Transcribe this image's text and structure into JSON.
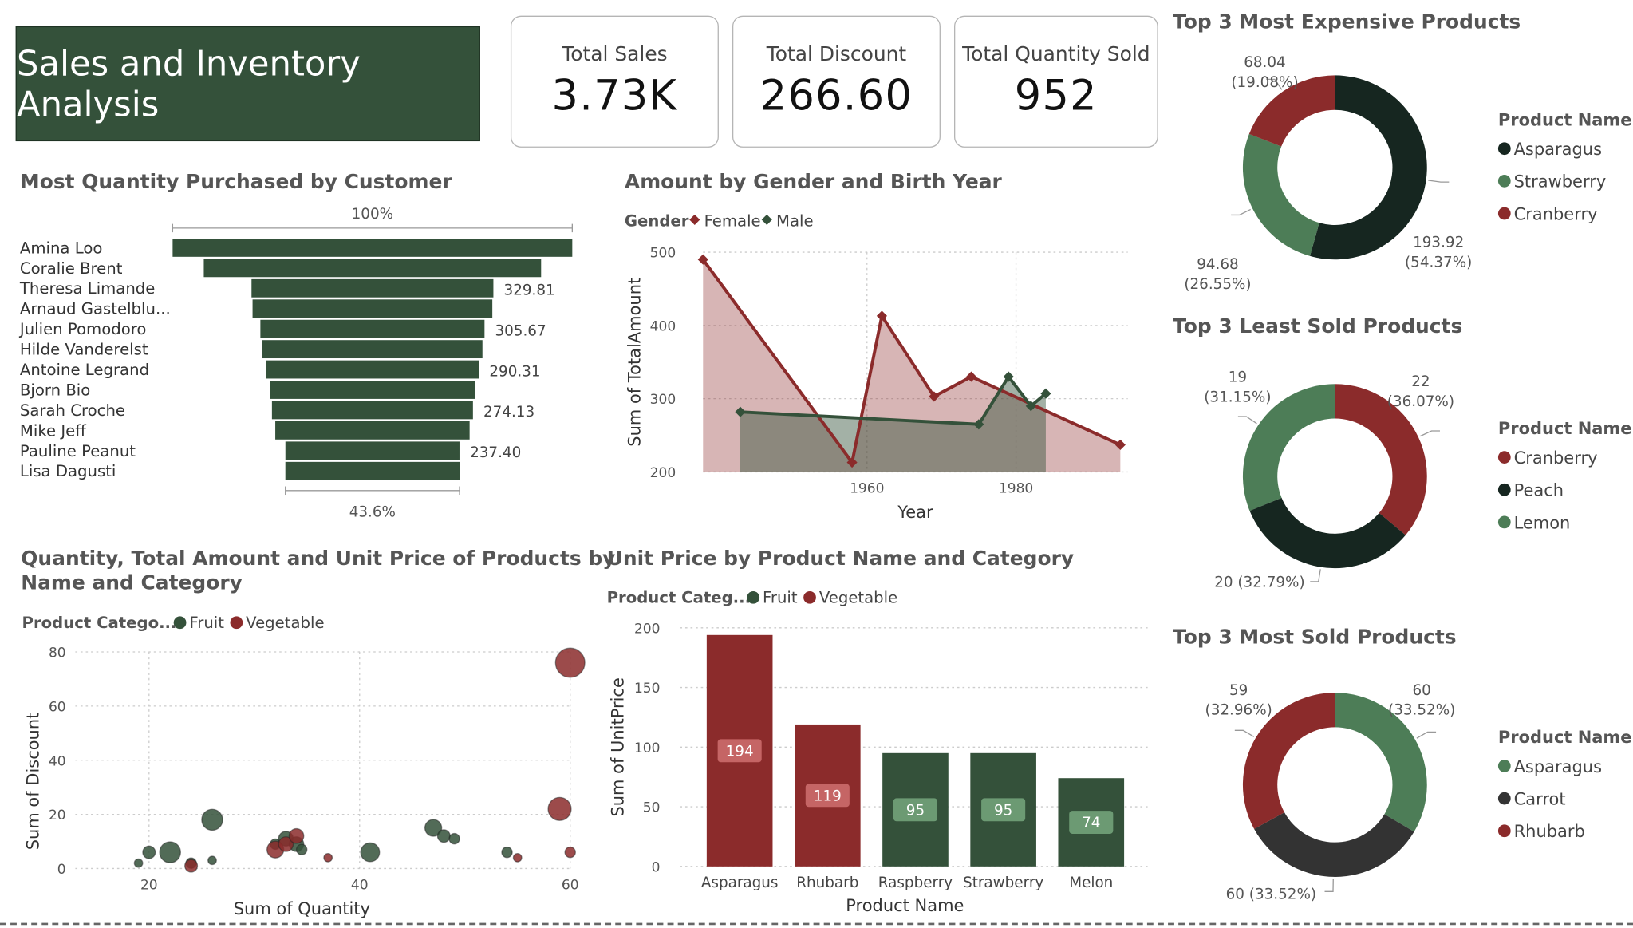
{
  "header": {
    "title": "Sales and Inventory Analysis"
  },
  "kpis": [
    {
      "label": "Total Sales",
      "value": "3.73K"
    },
    {
      "label": "Total Discount",
      "value": "266.60"
    },
    {
      "label": "Total Quantity Sold",
      "value": "952"
    }
  ],
  "colors": {
    "dark_green": "#34513a",
    "light_green": "#4d7d57",
    "red": "#8b2b2b",
    "black_green": "#162620",
    "charcoal": "#333333"
  },
  "chart_data": [
    {
      "id": "funnel",
      "type": "bar",
      "subtype": "funnel",
      "title": "Most Quantity Purchased by Customer",
      "top_label": "100%",
      "bottom_label": "43.6%",
      "categories": [
        "Amina Loo",
        "Coralie Brent",
        "Theresa Limande",
        "Arnaud Gastelblu...",
        "Julien Pomodoro",
        "Hilde Vanderelst",
        "Antoine Legrand",
        "Bjorn Bio",
        "Sarah Croche",
        "Mike Jeff",
        "Pauline Peanut",
        "Lisa Dagusti"
      ],
      "values": [
        545,
        460,
        329.81,
        327,
        305.67,
        300,
        290.31,
        280,
        274.13,
        265,
        237.4,
        237.5
      ],
      "data_labels": [
        "",
        "",
        "329.81",
        "",
        "305.67",
        "",
        "290.31",
        "",
        "274.13",
        "",
        "237.40",
        ""
      ]
    },
    {
      "id": "gender_line",
      "type": "area",
      "title": "Amount by Gender and Birth Year",
      "legend_title": "Gender",
      "xlabel": "Year",
      "ylabel": "Sum of TotalAmount",
      "xlim": [
        1938,
        1995
      ],
      "ylim": [
        200,
        500
      ],
      "xticks": [
        1960,
        1980
      ],
      "yticks": [
        200,
        300,
        400,
        500
      ],
      "series": [
        {
          "name": "Female",
          "color": "#8b2b2b",
          "x": [
            1938,
            1958,
            1962,
            1969,
            1974,
            1994
          ],
          "y": [
            490,
            213,
            413,
            303,
            330,
            237
          ]
        },
        {
          "name": "Male",
          "color": "#34513a",
          "x": [
            1943,
            1975,
            1979,
            1982,
            1984
          ],
          "y": [
            282,
            265,
            330,
            290,
            307
          ]
        }
      ]
    },
    {
      "id": "scatter",
      "type": "scatter",
      "title_line1": "Quantity, Total Amount and Unit Price of Products by",
      "title_line2": "Name and Category",
      "legend_title": "Product Catego...",
      "xlabel": "Sum of Quantity",
      "ylabel": "Sum of Discount",
      "xlim": [
        13,
        60
      ],
      "ylim": [
        0,
        80
      ],
      "xticks": [
        20,
        40,
        60
      ],
      "yticks": [
        0,
        20,
        40,
        60,
        80
      ],
      "series": [
        {
          "name": "Fruit",
          "color": "#34513a",
          "points": [
            {
              "x": 19,
              "y": 2,
              "r": 4
            },
            {
              "x": 20,
              "y": 6,
              "r": 6
            },
            {
              "x": 22,
              "y": 6,
              "r": 10
            },
            {
              "x": 24,
              "y": 2,
              "r": 5
            },
            {
              "x": 26,
              "y": 3,
              "r": 4
            },
            {
              "x": 26,
              "y": 18,
              "r": 10
            },
            {
              "x": 32,
              "y": 9,
              "r": 5
            },
            {
              "x": 33,
              "y": 11,
              "r": 7
            },
            {
              "x": 34,
              "y": 9,
              "r": 7
            },
            {
              "x": 34.5,
              "y": 7,
              "r": 5
            },
            {
              "x": 41,
              "y": 6,
              "r": 9
            },
            {
              "x": 47,
              "y": 15,
              "r": 8
            },
            {
              "x": 48,
              "y": 12,
              "r": 6
            },
            {
              "x": 49,
              "y": 11,
              "r": 5
            },
            {
              "x": 54,
              "y": 6,
              "r": 5
            }
          ]
        },
        {
          "name": "Vegetable",
          "color": "#8b2b2b",
          "points": [
            {
              "x": 24,
              "y": 1,
              "r": 6
            },
            {
              "x": 32,
              "y": 7,
              "r": 8
            },
            {
              "x": 33,
              "y": 9,
              "r": 7
            },
            {
              "x": 34,
              "y": 12,
              "r": 7
            },
            {
              "x": 37,
              "y": 4,
              "r": 4
            },
            {
              "x": 55,
              "y": 4,
              "r": 4
            },
            {
              "x": 59,
              "y": 22,
              "r": 11
            },
            {
              "x": 60,
              "y": 6,
              "r": 5
            },
            {
              "x": 60,
              "y": 76,
              "r": 14
            }
          ]
        }
      ]
    },
    {
      "id": "unit_price_bar",
      "type": "bar",
      "title": "Unit Price by Product Name and Category",
      "legend_title": "Product Categ...",
      "legend": [
        "Fruit",
        "Vegetable"
      ],
      "xlabel": "Product Name",
      "ylabel": "Sum of UnitPrice",
      "ylim": [
        0,
        200
      ],
      "yticks": [
        0,
        50,
        100,
        150,
        200
      ],
      "categories": [
        "Asparagus",
        "Rhubarb",
        "Raspberry",
        "Strawberry",
        "Melon"
      ],
      "values": [
        194,
        119,
        95,
        95,
        74
      ],
      "data_labels": [
        "194",
        "119",
        "95",
        "95",
        "74"
      ],
      "category_of_bar": [
        "Vegetable",
        "Vegetable",
        "Fruit",
        "Fruit",
        "Fruit"
      ]
    },
    {
      "id": "donut_expensive",
      "type": "pie",
      "subtype": "donut",
      "title": "Top 3 Most Expensive Products",
      "legend_title": "Product Name",
      "labels": [
        "Asparagus",
        "Strawberry",
        "Cranberry"
      ],
      "values": [
        193.92,
        94.68,
        68.04
      ],
      "colors": [
        "#162620",
        "#4d7d57",
        "#8b2b2b"
      ],
      "data_labels": [
        [
          "193.92",
          "(54.37%)"
        ],
        [
          "94.68",
          "(26.55%)"
        ],
        [
          "68.04",
          "(19.08%)"
        ]
      ]
    },
    {
      "id": "donut_least",
      "type": "pie",
      "subtype": "donut",
      "title": "Top 3 Least Sold Products",
      "legend_title": "Product Name",
      "labels": [
        "Cranberry",
        "Peach",
        "Lemon"
      ],
      "values": [
        22,
        20,
        19
      ],
      "colors": [
        "#8b2b2b",
        "#162620",
        "#4d7d57"
      ],
      "data_labels": [
        [
          "22",
          "(36.07%)"
        ],
        [
          "20 (32.79%)"
        ],
        [
          "19",
          "(31.15%)"
        ]
      ]
    },
    {
      "id": "donut_most",
      "type": "pie",
      "subtype": "donut",
      "title": "Top 3 Most Sold Products",
      "legend_title": "Product Name",
      "labels": [
        "Asparagus",
        "Carrot",
        "Rhubarb"
      ],
      "values": [
        60,
        60,
        59
      ],
      "colors": [
        "#4d7d57",
        "#333333",
        "#8b2b2b"
      ],
      "data_labels": [
        [
          "60",
          "(33.52%)"
        ],
        [
          "60 (33.52%)"
        ],
        [
          "59",
          "(32.96%)"
        ]
      ]
    }
  ]
}
